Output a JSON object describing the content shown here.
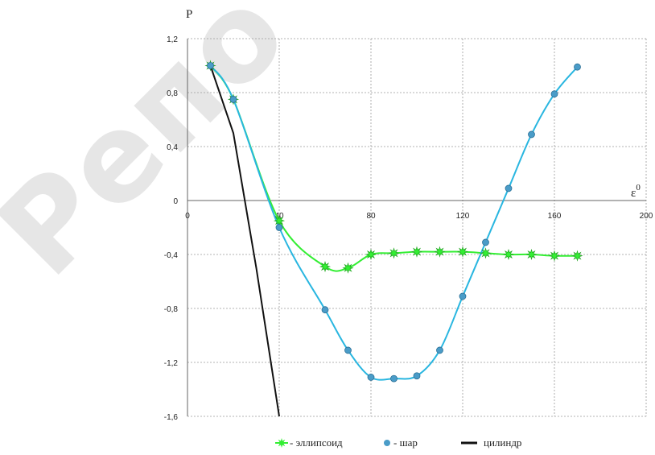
{
  "watermark": "Репо",
  "chart_data": {
    "type": "line",
    "title": "",
    "xlabel": "ε⁰",
    "ylabel": "P",
    "xlim": [
      0,
      200
    ],
    "ylim": [
      -1.6,
      1.2
    ],
    "x_ticks": [
      "0",
      "40",
      "80",
      "120",
      "160",
      "200"
    ],
    "x_tick_values": [
      0,
      40,
      80,
      120,
      160,
      200
    ],
    "y_ticks": [
      "1,2",
      "0,8",
      "0,4",
      "0",
      "-0,4",
      "-0,8",
      "-1,2",
      "-1,6"
    ],
    "y_tick_values": [
      1.2,
      0.8,
      0.4,
      0,
      -0.4,
      -0.8,
      -1.2,
      -1.6
    ],
    "grid": true,
    "legend_position": "bottom",
    "series": [
      {
        "name": "- эллипсоид",
        "color": "#33ee33",
        "marker": "star",
        "x": [
          10,
          20,
          40,
          60,
          70,
          80,
          90,
          100,
          110,
          120,
          130,
          140,
          150,
          160,
          170
        ],
        "y": [
          1.0,
          0.75,
          -0.15,
          -0.49,
          -0.5,
          -0.4,
          -0.39,
          -0.38,
          -0.38,
          -0.38,
          -0.39,
          -0.4,
          -0.4,
          -0.41,
          -0.41
        ]
      },
      {
        "name": "- шар",
        "color": "#29b6e0",
        "marker": "circle",
        "x": [
          10,
          20,
          40,
          60,
          70,
          80,
          90,
          100,
          110,
          120,
          130,
          140,
          150,
          160,
          170
        ],
        "y": [
          1.0,
          0.75,
          -0.2,
          -0.81,
          -1.11,
          -1.31,
          -1.32,
          -1.3,
          -1.11,
          -0.71,
          -0.31,
          0.09,
          0.49,
          0.79,
          0.99
        ]
      },
      {
        "name": "цилиндр",
        "color": "#111111",
        "marker": "none",
        "x": [
          10,
          20,
          30,
          40
        ],
        "y": [
          1.0,
          0.5,
          -0.5,
          -1.6
        ]
      }
    ]
  }
}
